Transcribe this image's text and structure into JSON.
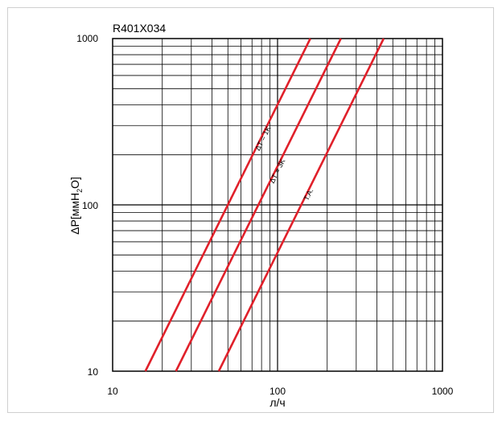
{
  "chart_data": {
    "type": "line",
    "title": "R401X034",
    "xlabel": "л/ч",
    "ylabel_main": "ΔP[ммH",
    "ylabel_sub": "2",
    "ylabel_end": "O]",
    "x_scale": "log",
    "y_scale": "log",
    "xlim": [
      10,
      1000
    ],
    "ylim": [
      10,
      1000
    ],
    "x_ticks": [
      "10",
      "100",
      "1000"
    ],
    "y_ticks": [
      "10",
      "100",
      "1000"
    ],
    "grid": true,
    "line_color": "#e0202a",
    "series": [
      {
        "name": "ΔT = 1K",
        "x": [
          15.8,
          158
        ],
        "y": [
          10,
          1000
        ]
      },
      {
        "name": "ΔT = 3K",
        "x": [
          24.2,
          242
        ],
        "y": [
          10,
          1000
        ]
      },
      {
        "name": "T.A.",
        "x": [
          44,
          440
        ],
        "y": [
          10,
          1000
        ]
      }
    ]
  }
}
